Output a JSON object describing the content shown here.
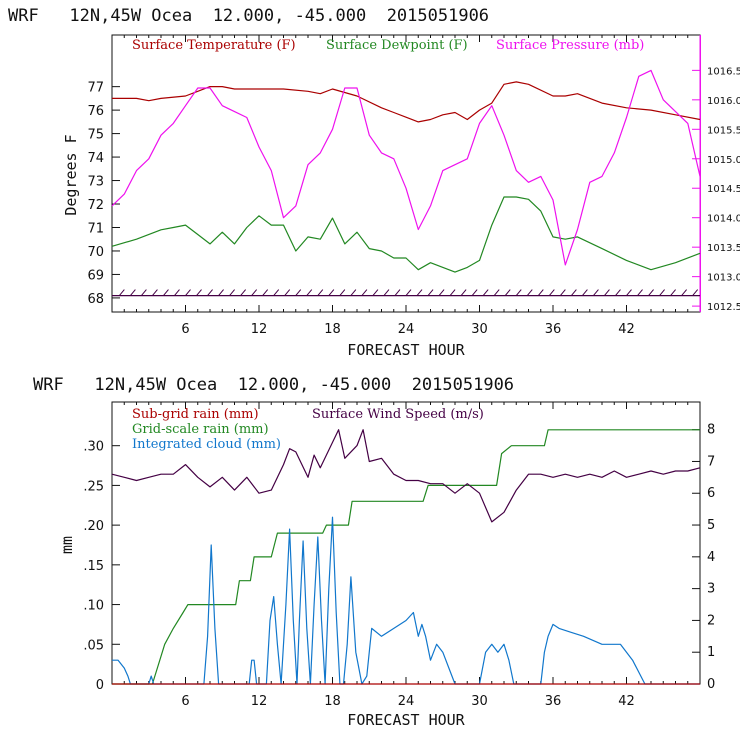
{
  "colors": {
    "temperature": "#aa0000",
    "dewpoint": "#228822",
    "pressure": "#ee11ee",
    "subgrid": "#aa0000",
    "gridscale": "#228822",
    "cloud": "#1177cc",
    "wind": "#440044",
    "axis": "#111111"
  },
  "chart_data": [
    {
      "type": "line",
      "title": "WRF   12N,45W Ocea  12.000, -45.000  2015051906",
      "xlabel": "FORECAST HOUR",
      "ylabel": "Degrees F",
      "xlim": [
        0,
        48
      ],
      "ylim": [
        67.4,
        79.2
      ],
      "y2lim": [
        1012.4,
        1017.1
      ],
      "xticks": [
        {
          "value": 6,
          "label": "6"
        },
        {
          "value": 12,
          "label": "12"
        },
        {
          "value": 18,
          "label": "18"
        },
        {
          "value": 24,
          "label": "24"
        },
        {
          "value": 30,
          "label": "30"
        },
        {
          "value": 36,
          "label": "36"
        },
        {
          "value": 42,
          "label": "42"
        }
      ],
      "yticks": [
        {
          "value": 68,
          "label": "68"
        },
        {
          "value": 69,
          "label": "69"
        },
        {
          "value": 70,
          "label": "70"
        },
        {
          "value": 71,
          "label": "71"
        },
        {
          "value": 72,
          "label": "72"
        },
        {
          "value": 73,
          "label": "73"
        },
        {
          "value": 74,
          "label": "74"
        },
        {
          "value": 75,
          "label": "75"
        },
        {
          "value": 76,
          "label": "76"
        },
        {
          "value": 77,
          "label": "77"
        }
      ],
      "y2ticks": [
        {
          "value": 1012.5,
          "label": "1012.5"
        },
        {
          "value": 1013.0,
          "label": "1013.0"
        },
        {
          "value": 1013.5,
          "label": "1013.5"
        },
        {
          "value": 1014.0,
          "label": "1014.0"
        },
        {
          "value": 1014.5,
          "label": "1014.5"
        },
        {
          "value": 1015.0,
          "label": "1015.0"
        },
        {
          "value": 1015.5,
          "label": "1015.5"
        },
        {
          "value": 1016.0,
          "label": "1016.0"
        },
        {
          "value": 1016.5,
          "label": "1016.5"
        }
      ],
      "legend": [
        {
          "label": "Surface Temperature (F)",
          "color_key": "temperature"
        },
        {
          "label": "Surface Dewpoint (F)",
          "color_key": "dewpoint"
        },
        {
          "label": "Surface Pressure (mb)",
          "color_key": "pressure"
        }
      ],
      "series": [
        {
          "name": "Surface Temperature (F)",
          "color_key": "temperature",
          "axis": "left",
          "x": [
            0,
            2,
            3,
            4,
            6,
            7,
            8,
            9,
            10,
            12,
            14,
            16,
            17,
            18,
            20,
            22,
            23,
            24,
            25,
            26,
            27,
            28,
            29,
            30,
            31,
            32,
            33,
            34,
            36,
            37,
            38,
            40,
            42,
            44,
            46,
            48
          ],
          "y": [
            76.5,
            76.5,
            76.4,
            76.5,
            76.6,
            76.8,
            77.0,
            77.0,
            76.9,
            76.9,
            76.9,
            76.8,
            76.7,
            76.9,
            76.6,
            76.1,
            75.9,
            75.7,
            75.5,
            75.6,
            75.8,
            75.9,
            75.6,
            76.0,
            76.3,
            77.1,
            77.2,
            77.1,
            76.6,
            76.6,
            76.7,
            76.3,
            76.1,
            76.0,
            75.8,
            75.6
          ]
        },
        {
          "name": "Surface Dewpoint (F)",
          "color_key": "dewpoint",
          "axis": "left",
          "x": [
            0,
            2,
            4,
            5,
            6,
            7,
            8,
            9,
            10,
            11,
            12,
            13,
            14,
            15,
            16,
            17,
            18,
            19,
            20,
            21,
            22,
            23,
            24,
            25,
            26,
            28,
            29,
            30,
            31,
            32,
            33,
            34,
            35,
            36,
            37,
            38,
            40,
            42,
            44,
            46,
            48
          ],
          "y": [
            70.2,
            70.5,
            70.9,
            71.0,
            71.1,
            70.7,
            70.3,
            70.8,
            70.3,
            71.0,
            71.5,
            71.1,
            71.1,
            70.0,
            70.6,
            70.5,
            71.4,
            70.3,
            70.8,
            70.1,
            70.0,
            69.7,
            69.7,
            69.2,
            69.5,
            69.1,
            69.3,
            69.6,
            71.1,
            72.3,
            72.3,
            72.2,
            71.7,
            70.6,
            70.5,
            70.6,
            70.1,
            69.6,
            69.2,
            69.5,
            69.9
          ]
        },
        {
          "name": "Surface Pressure (mb)",
          "color_key": "pressure",
          "axis": "right",
          "x": [
            0,
            1,
            2,
            3,
            4,
            5,
            6,
            7,
            8,
            9,
            10,
            11,
            12,
            13,
            14,
            15,
            16,
            17,
            18,
            19,
            20,
            21,
            22,
            23,
            24,
            25,
            26,
            27,
            28,
            29,
            30,
            31,
            32,
            33,
            34,
            35,
            36,
            37,
            38,
            39,
            40,
            41,
            42,
            43,
            44,
            45,
            46,
            47,
            48
          ],
          "y": [
            1014.2,
            1014.4,
            1014.8,
            1015.0,
            1015.4,
            1015.6,
            1015.9,
            1016.2,
            1016.2,
            1015.9,
            1015.8,
            1015.7,
            1015.2,
            1014.8,
            1014.0,
            1014.2,
            1014.9,
            1015.1,
            1015.5,
            1016.2,
            1016.2,
            1015.4,
            1015.1,
            1015.0,
            1014.5,
            1013.8,
            1014.2,
            1014.8,
            1014.9,
            1015.0,
            1015.6,
            1015.9,
            1015.4,
            1014.8,
            1014.6,
            1014.7,
            1014.3,
            1013.2,
            1013.8,
            1014.6,
            1014.7,
            1015.1,
            1015.7,
            1016.4,
            1016.5,
            1016.0,
            1015.8,
            1015.6,
            1014.7
          ]
        },
        {
          "name": "Wind barbs",
          "color_key": "wind",
          "axis": "left",
          "x": [
            0,
            48
          ],
          "y": [
            68.1,
            68.1
          ]
        }
      ]
    },
    {
      "type": "line",
      "title": "WRF   12N,45W Ocea  12.000, -45.000  2015051906",
      "xlabel": "FORECAST HOUR",
      "ylabel": "mm",
      "xlim": [
        0,
        48
      ],
      "ylim": [
        0,
        0.355
      ],
      "y2lim": [
        0,
        8.87
      ],
      "xticks": [
        {
          "value": 6,
          "label": "6"
        },
        {
          "value": 12,
          "label": "12"
        },
        {
          "value": 18,
          "label": "18"
        },
        {
          "value": 24,
          "label": "24"
        },
        {
          "value": 30,
          "label": "30"
        },
        {
          "value": 36,
          "label": "36"
        },
        {
          "value": 42,
          "label": "42"
        }
      ],
      "yticks": [
        {
          "value": 0,
          "label": "0"
        },
        {
          "value": 0.05,
          "label": ".05"
        },
        {
          "value": 0.1,
          "label": ".10"
        },
        {
          "value": 0.15,
          "label": ".15"
        },
        {
          "value": 0.2,
          "label": ".20"
        },
        {
          "value": 0.25,
          "label": ".25"
        },
        {
          "value": 0.3,
          "label": ".30"
        }
      ],
      "y2ticks": [
        {
          "value": 0,
          "label": "0"
        },
        {
          "value": 1,
          "label": "1"
        },
        {
          "value": 2,
          "label": "2"
        },
        {
          "value": 3,
          "label": "3"
        },
        {
          "value": 4,
          "label": "4"
        },
        {
          "value": 5,
          "label": "5"
        },
        {
          "value": 6,
          "label": "6"
        },
        {
          "value": 7,
          "label": "7"
        },
        {
          "value": 8,
          "label": "8"
        }
      ],
      "legend": [
        {
          "label": "Sub-grid rain (mm)",
          "color_key": "subgrid"
        },
        {
          "label": "Surface Wind Speed (m/s)",
          "color_key": "wind"
        },
        {
          "label": "Grid-scale rain (mm)",
          "color_key": "gridscale"
        },
        {
          "label": "Integrated cloud (mm)",
          "color_key": "cloud"
        }
      ],
      "series": [
        {
          "name": "Grid-scale rain (mm)",
          "color_key": "gridscale",
          "axis": "left",
          "x": [
            0,
            3.3,
            3.9,
            4.3,
            5.0,
            5.8,
            6.2,
            10.1,
            10.4,
            11.3,
            11.6,
            13.0,
            13.5,
            17.2,
            17.5,
            19.3,
            19.6,
            25.4,
            25.8,
            31.4,
            31.8,
            32.6,
            35.3,
            35.6,
            36.2,
            48
          ],
          "y": [
            0,
            0,
            0.03,
            0.05,
            0.07,
            0.09,
            0.1,
            0.1,
            0.13,
            0.13,
            0.16,
            0.16,
            0.19,
            0.19,
            0.2,
            0.2,
            0.23,
            0.23,
            0.25,
            0.25,
            0.29,
            0.3,
            0.3,
            0.32,
            0.32,
            0.32
          ]
        },
        {
          "name": "Integrated cloud (mm)",
          "color_key": "cloud",
          "axis": "left",
          "x": [
            0,
            0.5,
            1.0,
            1.3,
            1.5,
            3.0,
            3.2,
            3.4,
            7.5,
            7.8,
            8.1,
            8.4,
            8.7,
            10.0,
            11.2,
            11.4,
            11.6,
            11.8,
            12.6,
            12.9,
            13.2,
            13.5,
            13.8,
            14.2,
            14.5,
            14.8,
            15.1,
            15.3,
            15.6,
            15.9,
            16.2,
            16.5,
            16.8,
            17.1,
            17.4,
            17.7,
            18.0,
            18.3,
            18.6,
            18.9,
            19.2,
            19.5,
            19.9,
            20.4,
            20.8,
            21.2,
            22.0,
            23.0,
            24.0,
            24.6,
            25.0,
            25.3,
            25.6,
            26.0,
            26.5,
            27.0,
            27.5,
            28.0,
            29.0,
            30.0,
            30.5,
            31.0,
            31.5,
            32.0,
            32.4,
            32.8,
            35.0,
            35.3,
            35.6,
            36.0,
            36.5,
            37.5,
            38.5,
            40.0,
            41.5,
            42.5,
            43.5,
            48
          ],
          "y": [
            0.03,
            0.03,
            0.02,
            0.01,
            0,
            0,
            0.01,
            0,
            0,
            0.06,
            0.175,
            0.07,
            0,
            0,
            0,
            0.03,
            0.03,
            0,
            0,
            0.08,
            0.11,
            0.05,
            0,
            0.1,
            0.195,
            0.08,
            0,
            0.08,
            0.18,
            0.07,
            0,
            0.1,
            0.185,
            0.08,
            0,
            0.12,
            0.21,
            0.09,
            0,
            0,
            0.05,
            0.135,
            0.04,
            0,
            0.01,
            0.07,
            0.06,
            0.07,
            0.08,
            0.09,
            0.06,
            0.075,
            0.06,
            0.03,
            0.05,
            0.04,
            0.02,
            0,
            0,
            0,
            0.04,
            0.05,
            0.04,
            0.05,
            0.03,
            0,
            0,
            0.04,
            0.06,
            0.075,
            0.07,
            0.065,
            0.06,
            0.05,
            0.05,
            0.03,
            0,
            0
          ]
        },
        {
          "name": "Surface Wind Speed (m/s)",
          "color_key": "wind",
          "axis": "right",
          "x": [
            0,
            1,
            2,
            3,
            4,
            5,
            6,
            7,
            8,
            9,
            10,
            11,
            12,
            13,
            14,
            14.5,
            15,
            16,
            16.5,
            17,
            18,
            18.5,
            19,
            20,
            20.5,
            21,
            22,
            23,
            24,
            25,
            26,
            27,
            28,
            29,
            30,
            31,
            32,
            33,
            34,
            35,
            36,
            37,
            38,
            39,
            40,
            41,
            42,
            43,
            44,
            45,
            46,
            47,
            48
          ],
          "y": [
            6.6,
            6.5,
            6.4,
            6.5,
            6.6,
            6.6,
            6.9,
            6.5,
            6.2,
            6.5,
            6.1,
            6.5,
            6.0,
            6.1,
            6.9,
            7.4,
            7.3,
            6.5,
            7.2,
            6.8,
            7.6,
            8.0,
            7.1,
            7.5,
            8.0,
            7.0,
            7.1,
            6.6,
            6.4,
            6.4,
            6.3,
            6.3,
            6.0,
            6.3,
            6.0,
            5.1,
            5.4,
            6.1,
            6.6,
            6.6,
            6.5,
            6.6,
            6.5,
            6.6,
            6.5,
            6.7,
            6.5,
            6.6,
            6.7,
            6.6,
            6.7,
            6.7,
            6.8
          ]
        },
        {
          "name": "Sub-grid rain (mm)",
          "color_key": "subgrid",
          "axis": "left",
          "x": [
            0,
            48
          ],
          "y": [
            0,
            0
          ]
        }
      ]
    }
  ]
}
